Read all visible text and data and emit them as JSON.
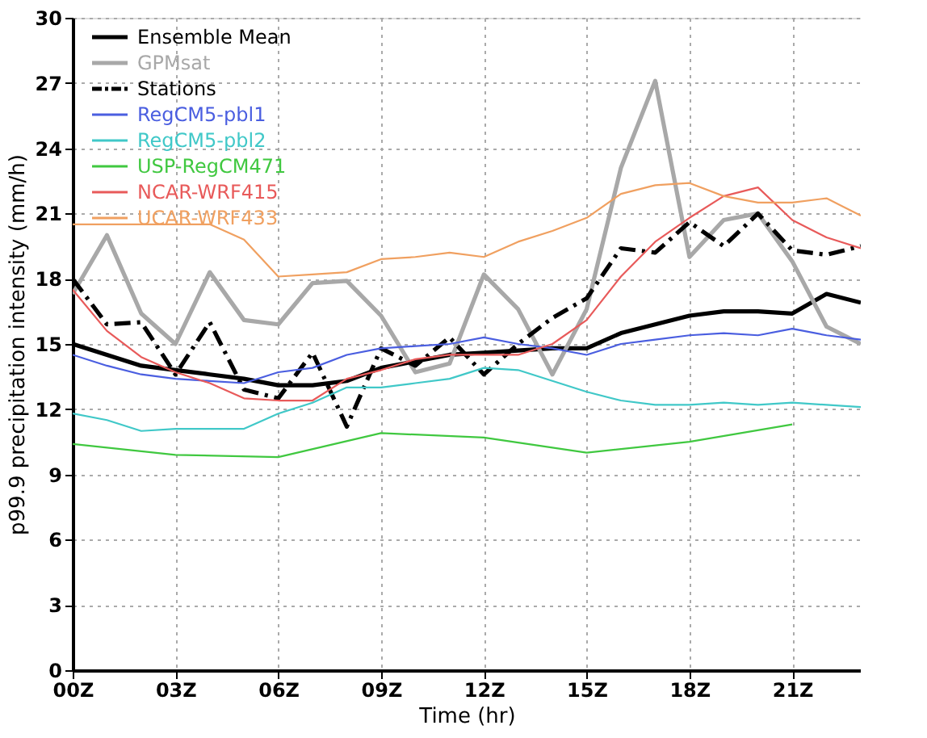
{
  "chart_data": {
    "type": "line",
    "xlabel": "Time (hr)",
    "ylabel": "p99.9 precipitation intensity (mm/h)",
    "x": [
      0,
      1,
      2,
      3,
      4,
      5,
      6,
      7,
      8,
      9,
      10,
      11,
      12,
      13,
      14,
      15,
      16,
      17,
      18,
      19,
      20,
      21,
      22,
      23
    ],
    "series": [
      {
        "name": "Ensemble Mean",
        "color": "#000000",
        "line_style": "solid",
        "values": [
          15.0,
          14.5,
          14.0,
          13.8,
          13.6,
          13.4,
          13.1,
          13.1,
          13.3,
          13.9,
          14.2,
          14.5,
          14.6,
          14.7,
          14.8,
          14.8,
          15.5,
          15.9,
          16.3,
          16.5,
          16.5,
          16.4,
          17.3,
          16.9
        ]
      },
      {
        "name": "GPMsat",
        "color": "#a8a8a8",
        "line_style": "solid",
        "values": [
          17.3,
          20.0,
          16.4,
          15.0,
          18.3,
          16.1,
          15.9,
          17.8,
          17.9,
          16.3,
          13.7,
          14.1,
          18.2,
          16.6,
          13.6,
          16.6,
          23.1,
          27.1,
          19.0,
          20.7,
          21.0,
          18.8,
          15.8,
          15.0
        ]
      },
      {
        "name": "Stations",
        "color": "#000000",
        "line_style": "dashed",
        "values": [
          18.0,
          15.9,
          16.0,
          13.6,
          16.0,
          12.9,
          12.5,
          14.6,
          11.2,
          14.8,
          14.0,
          15.3,
          13.6,
          15.0,
          16.2,
          17.1,
          19.4,
          19.2,
          20.6,
          19.5,
          21.0,
          19.3,
          19.1,
          19.5
        ]
      },
      {
        "name": "RegCM5-pbl1",
        "color": "#4a5ee0",
        "line_style": "solid",
        "values": [
          14.5,
          14.0,
          13.6,
          13.4,
          13.3,
          13.2,
          13.7,
          13.9,
          14.5,
          14.8,
          14.9,
          15.0,
          15.3,
          15.0,
          14.8,
          14.5,
          15.0,
          15.2,
          15.4,
          15.5,
          15.4,
          15.7,
          15.4,
          15.2
        ]
      },
      {
        "name": "RegCM5-pbl2",
        "color": "#40c8c8",
        "line_style": "solid",
        "values": [
          11.8,
          11.5,
          11.0,
          11.1,
          11.1,
          11.1,
          11.8,
          12.3,
          13.0,
          13.0,
          13.2,
          13.4,
          13.9,
          13.8,
          13.3,
          12.8,
          12.4,
          12.2,
          12.2,
          12.3,
          12.2,
          12.3,
          12.2,
          12.1
        ]
      },
      {
        "name": "USP-RegCM471",
        "color": "#40c840",
        "line_style": "solid",
        "x": [
          0,
          3,
          6,
          9,
          12,
          15,
          18,
          21
        ],
        "values": [
          10.4,
          9.9,
          9.8,
          10.9,
          10.7,
          10.0,
          10.5,
          11.3
        ]
      },
      {
        "name": "NCAR-WRF415",
        "color": "#e85a5a",
        "line_style": "solid",
        "values": [
          17.5,
          15.6,
          14.4,
          13.7,
          13.2,
          12.5,
          12.4,
          12.4,
          13.4,
          13.8,
          14.3,
          14.5,
          14.5,
          14.5,
          15.0,
          16.1,
          18.1,
          19.7,
          20.8,
          21.8,
          22.2,
          20.7,
          19.9,
          19.4
        ]
      },
      {
        "name": "UCAR-WRF433",
        "color": "#f0a060",
        "line_style": "solid",
        "values": [
          20.5,
          20.5,
          20.5,
          20.5,
          20.5,
          19.8,
          18.1,
          18.2,
          18.3,
          18.9,
          19.0,
          19.2,
          19.0,
          19.7,
          20.2,
          20.8,
          21.9,
          22.3,
          22.4,
          21.8,
          21.5,
          21.5,
          21.7,
          20.9
        ]
      }
    ],
    "xlim": [
      0,
      23
    ],
    "xticks": [
      {
        "value": 0,
        "label": "00Z"
      },
      {
        "value": 3,
        "label": "03Z"
      },
      {
        "value": 6,
        "label": "06Z"
      },
      {
        "value": 9,
        "label": "09Z"
      },
      {
        "value": 12,
        "label": "12Z"
      },
      {
        "value": 15,
        "label": "15Z"
      },
      {
        "value": 18,
        "label": "18Z"
      },
      {
        "value": 21,
        "label": "21Z"
      }
    ],
    "ylim": [
      0,
      30
    ],
    "yticks": [
      0,
      3,
      6,
      9,
      12,
      15,
      18,
      21,
      24,
      27,
      30
    ],
    "grid": true,
    "legend": "top left",
    "marker": "none"
  }
}
